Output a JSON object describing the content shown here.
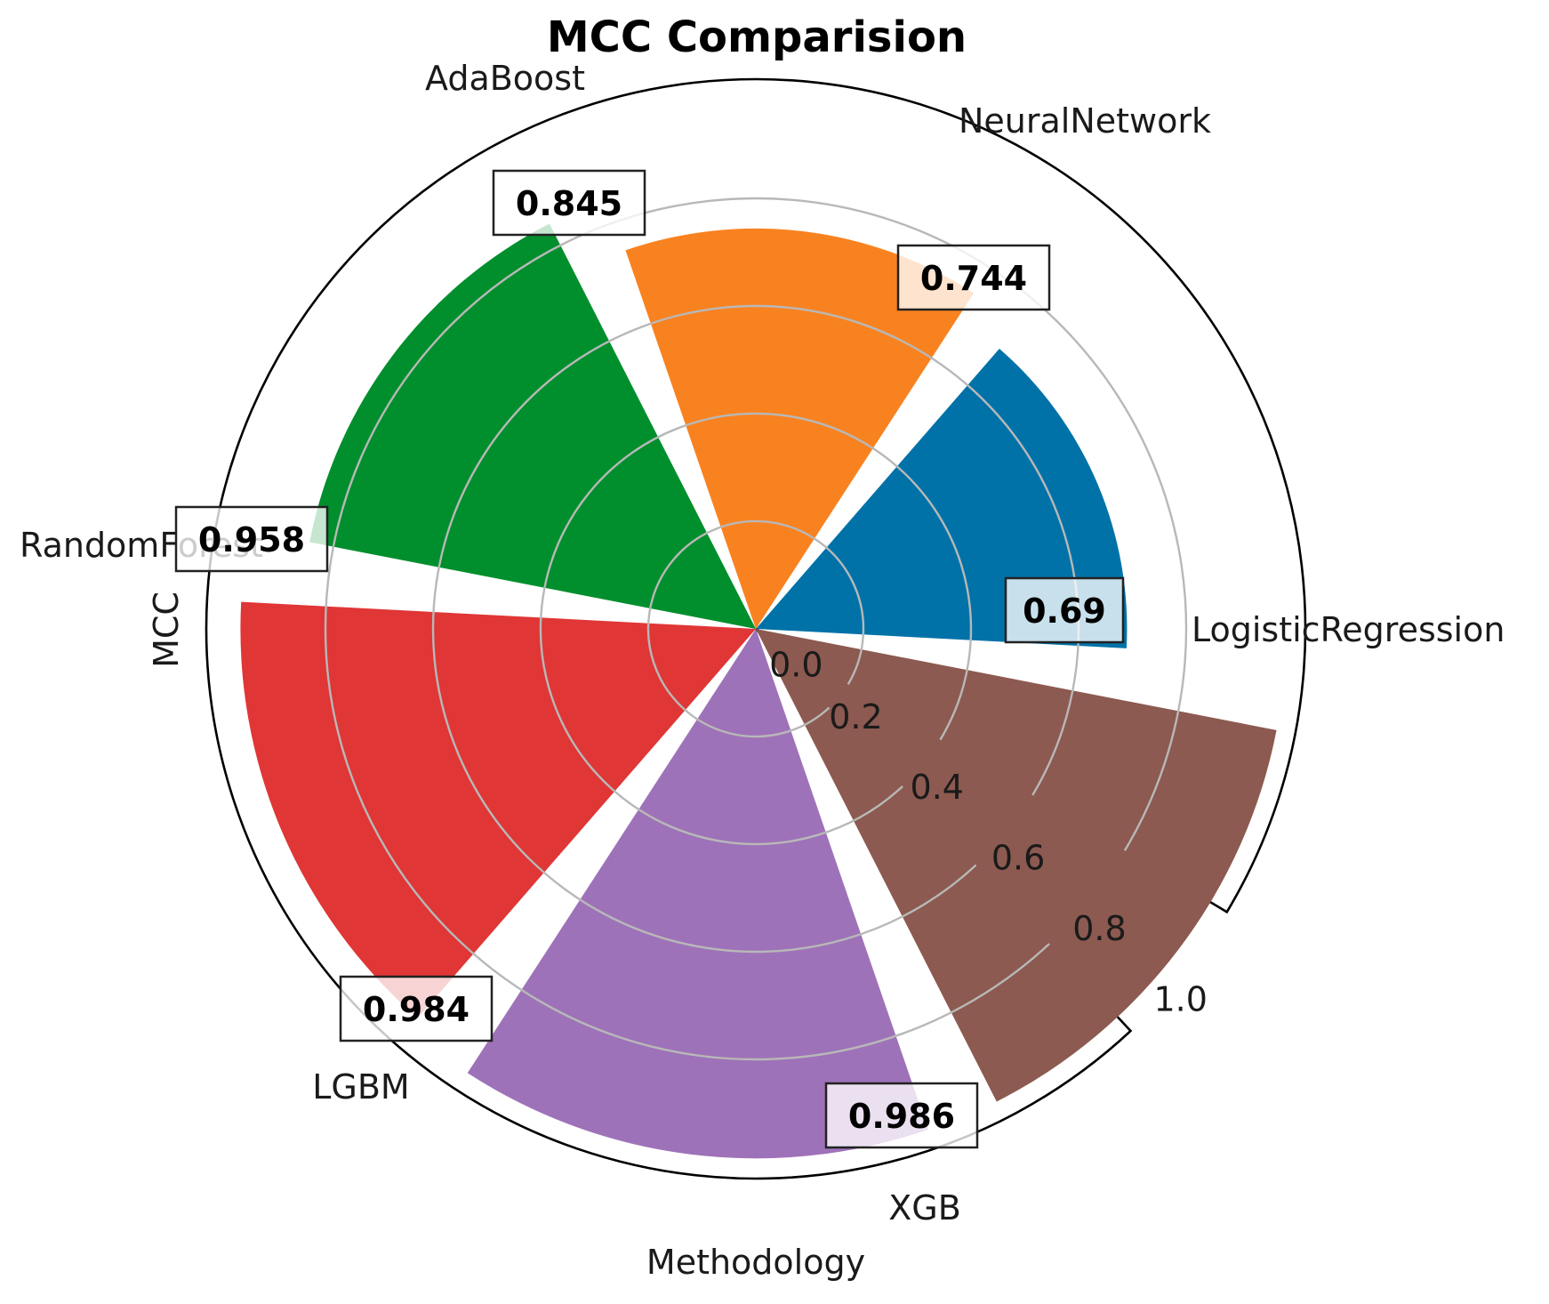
{
  "chart_data": {
    "type": "bar",
    "subtype": "polar",
    "title": "MCC Comparision",
    "xlabel": "Methodology",
    "ylabel": "MCC",
    "categories": [
      "LogisticRegression",
      "NeuralNetwork",
      "AdaBoost",
      "RandomForest",
      "LGBM",
      "XGB"
    ],
    "values": [
      0.69,
      0.744,
      0.845,
      0.958,
      0.984,
      0.986
    ],
    "value_labels": [
      "0.69",
      "0.744",
      "0.845",
      "0.958",
      "0.984",
      "0.986"
    ],
    "colors": [
      "#0072a8",
      "#f98220",
      "#008f2c",
      "#e03636",
      "#9e72b8",
      "#8c5a50"
    ],
    "radial_ticks": [
      "0.0",
      "0.2",
      "0.4",
      "0.6",
      "0.8",
      "1.0"
    ],
    "ylim": [
      0,
      1.0
    ],
    "grid": true
  }
}
